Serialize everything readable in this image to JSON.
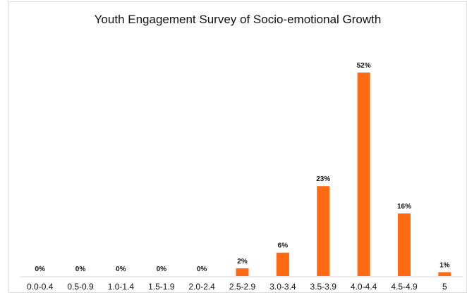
{
  "chart_data": {
    "type": "bar",
    "title": "Youth Engagement Survey of Socio-emotional Growth",
    "categories": [
      "0.0-0.4",
      "0.5-0.9",
      "1.0-1.4",
      "1.5-1.9",
      "2.0-2.4",
      "2.5-2.9",
      "3.0-3.4",
      "3.5-3.9",
      "4.0-4.4",
      "4.5-4.9",
      "5"
    ],
    "values": [
      0,
      0,
      0,
      0,
      0,
      2,
      6,
      23,
      52,
      16,
      1
    ],
    "data_labels": [
      "0%",
      "0%",
      "0%",
      "0%",
      "0%",
      "2%",
      "6%",
      "23%",
      "52%",
      "16%",
      "1%"
    ],
    "xlabel": "",
    "ylabel": "",
    "ylim": [
      0,
      52
    ],
    "grid": false,
    "legend": "none",
    "bar_color": "#ff6a13"
  }
}
